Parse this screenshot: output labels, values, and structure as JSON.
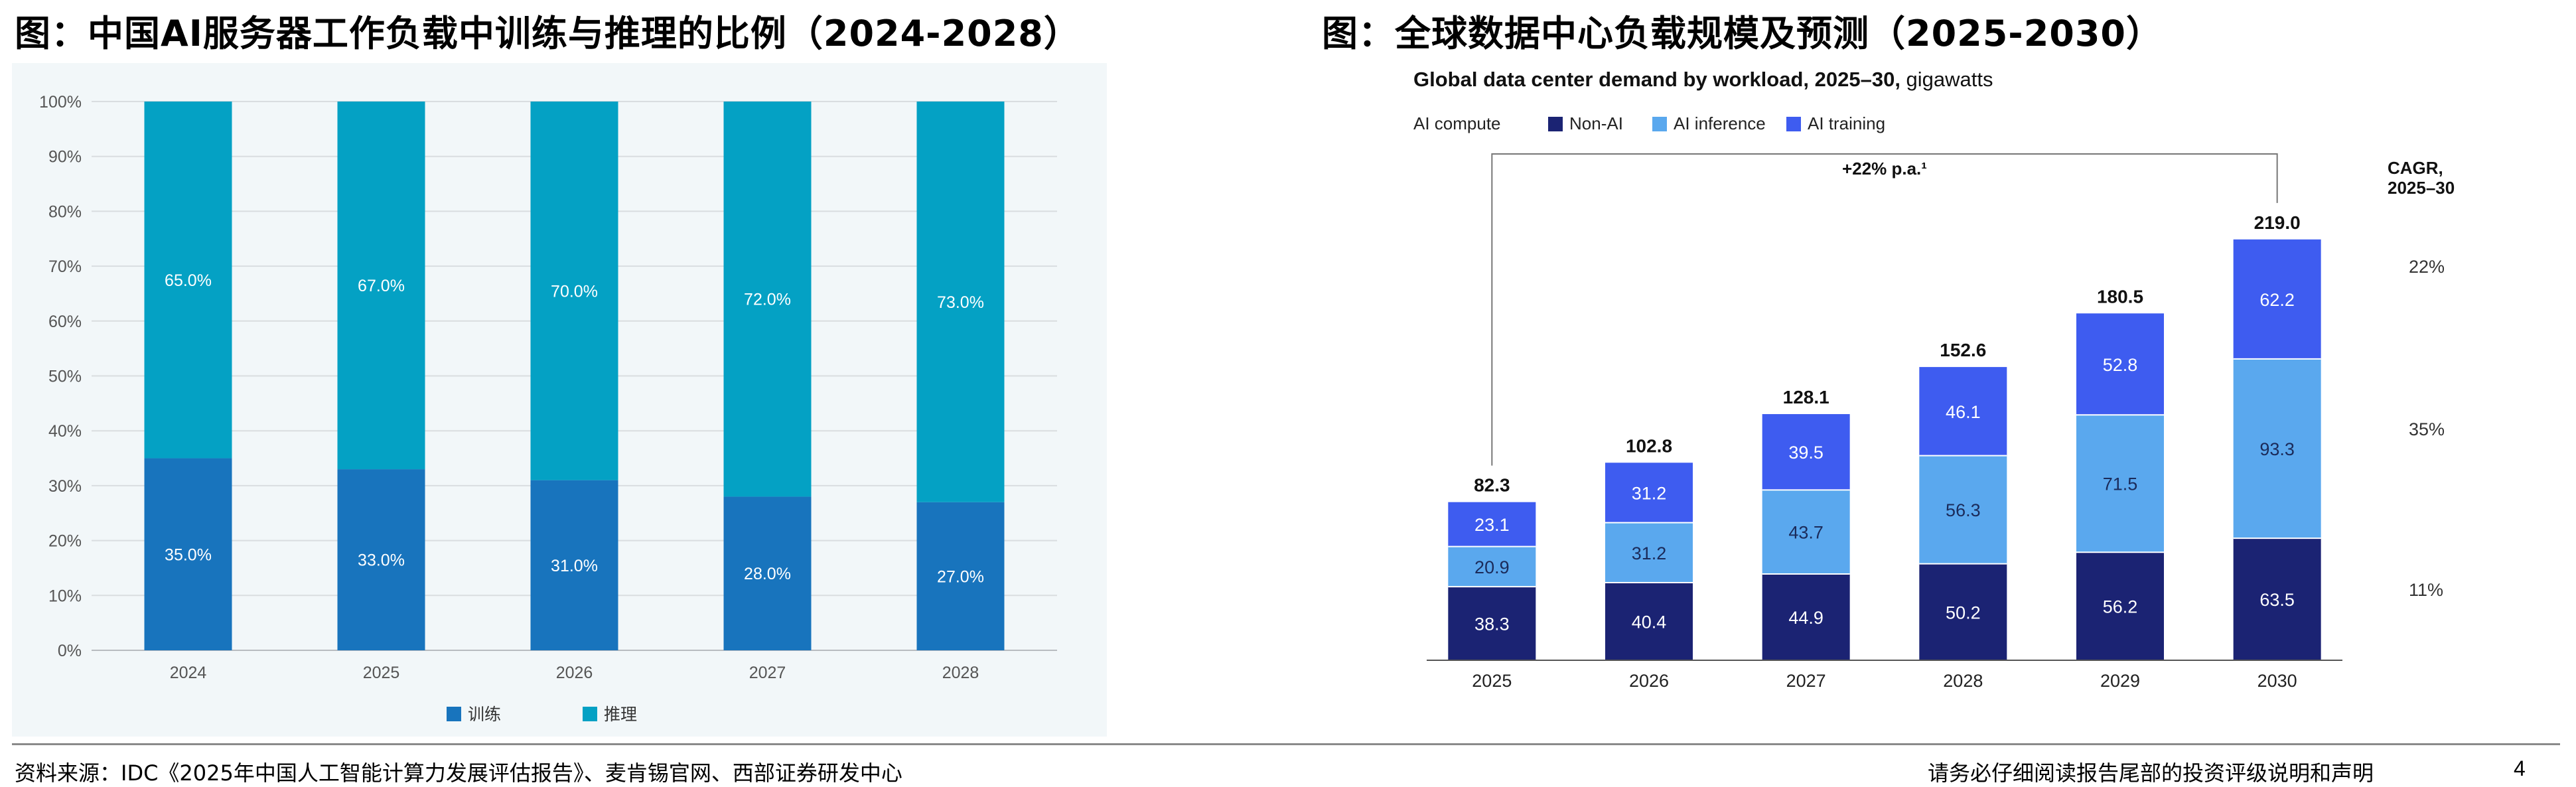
{
  "left_title": "图：中国AI服务器工作负载中训练与推理的比例（2024-2028）",
  "right_title": "图：全球数据中心负载规模及预测（2025-2030）",
  "footer": {
    "source": "资料来源：IDC《2025年中国人工智能计算力发展评估报告》、麦肯锡官网、西部证券研发中心",
    "disclaimer": "请务必仔细阅读报告尾部的投资评级说明和声明",
    "page": "4"
  },
  "chart_data": [
    {
      "type": "bar",
      "stacked": true,
      "title": "",
      "xlabel": "",
      "ylabel": "",
      "categories": [
        "2024",
        "2025",
        "2026",
        "2027",
        "2028"
      ],
      "series": [
        {
          "name": "训练",
          "color": "#1874bd",
          "values": [
            35.0,
            33.0,
            31.0,
            28.0,
            27.0
          ],
          "labels": [
            "35.0%",
            "33.0%",
            "31.0%",
            "28.0%",
            "27.0%"
          ]
        },
        {
          "name": "推理",
          "color": "#04a1c4",
          "values": [
            65.0,
            67.0,
            70.0,
            72.0,
            73.0
          ],
          "labels": [
            "65.0%",
            "67.0%",
            "70.0%",
            "72.0%",
            "73.0%"
          ]
        }
      ],
      "ylim": [
        0,
        100
      ],
      "yticks": [
        "0%",
        "10%",
        "20%",
        "30%",
        "40%",
        "50%",
        "60%",
        "70%",
        "80%",
        "90%",
        "100%"
      ],
      "grid": true,
      "legend_position": "bottom"
    },
    {
      "type": "bar",
      "stacked": true,
      "title": "Global data center demand by workload, 2025–30,",
      "title_unit": "gigawatts",
      "xlabel": "",
      "ylabel": "",
      "legend_heading": "AI compute",
      "categories": [
        "2025",
        "2026",
        "2027",
        "2028",
        "2029",
        "2030"
      ],
      "series": [
        {
          "name": "Non-AI",
          "color": "#1b2373",
          "values": [
            38.3,
            40.4,
            44.9,
            50.2,
            56.2,
            63.5
          ],
          "cagr": "11%"
        },
        {
          "name": "AI inference",
          "color": "#5aa8ee",
          "values": [
            20.9,
            31.2,
            43.7,
            56.3,
            71.5,
            93.3
          ],
          "cagr": "35%"
        },
        {
          "name": "AI training",
          "color": "#3e5cf0",
          "values": [
            23.1,
            31.2,
            39.5,
            46.1,
            52.8,
            62.2
          ],
          "cagr": "22%"
        }
      ],
      "totals": [
        "82.3",
        "102.8",
        "128.1",
        "152.6",
        "180.5",
        "219.0"
      ],
      "growth_annotation": "+22% p.a.¹",
      "cagr_heading": [
        "CAGR,",
        "2025–30"
      ],
      "ylim": [
        0,
        240
      ],
      "grid": false,
      "legend_position": "top-left"
    }
  ]
}
